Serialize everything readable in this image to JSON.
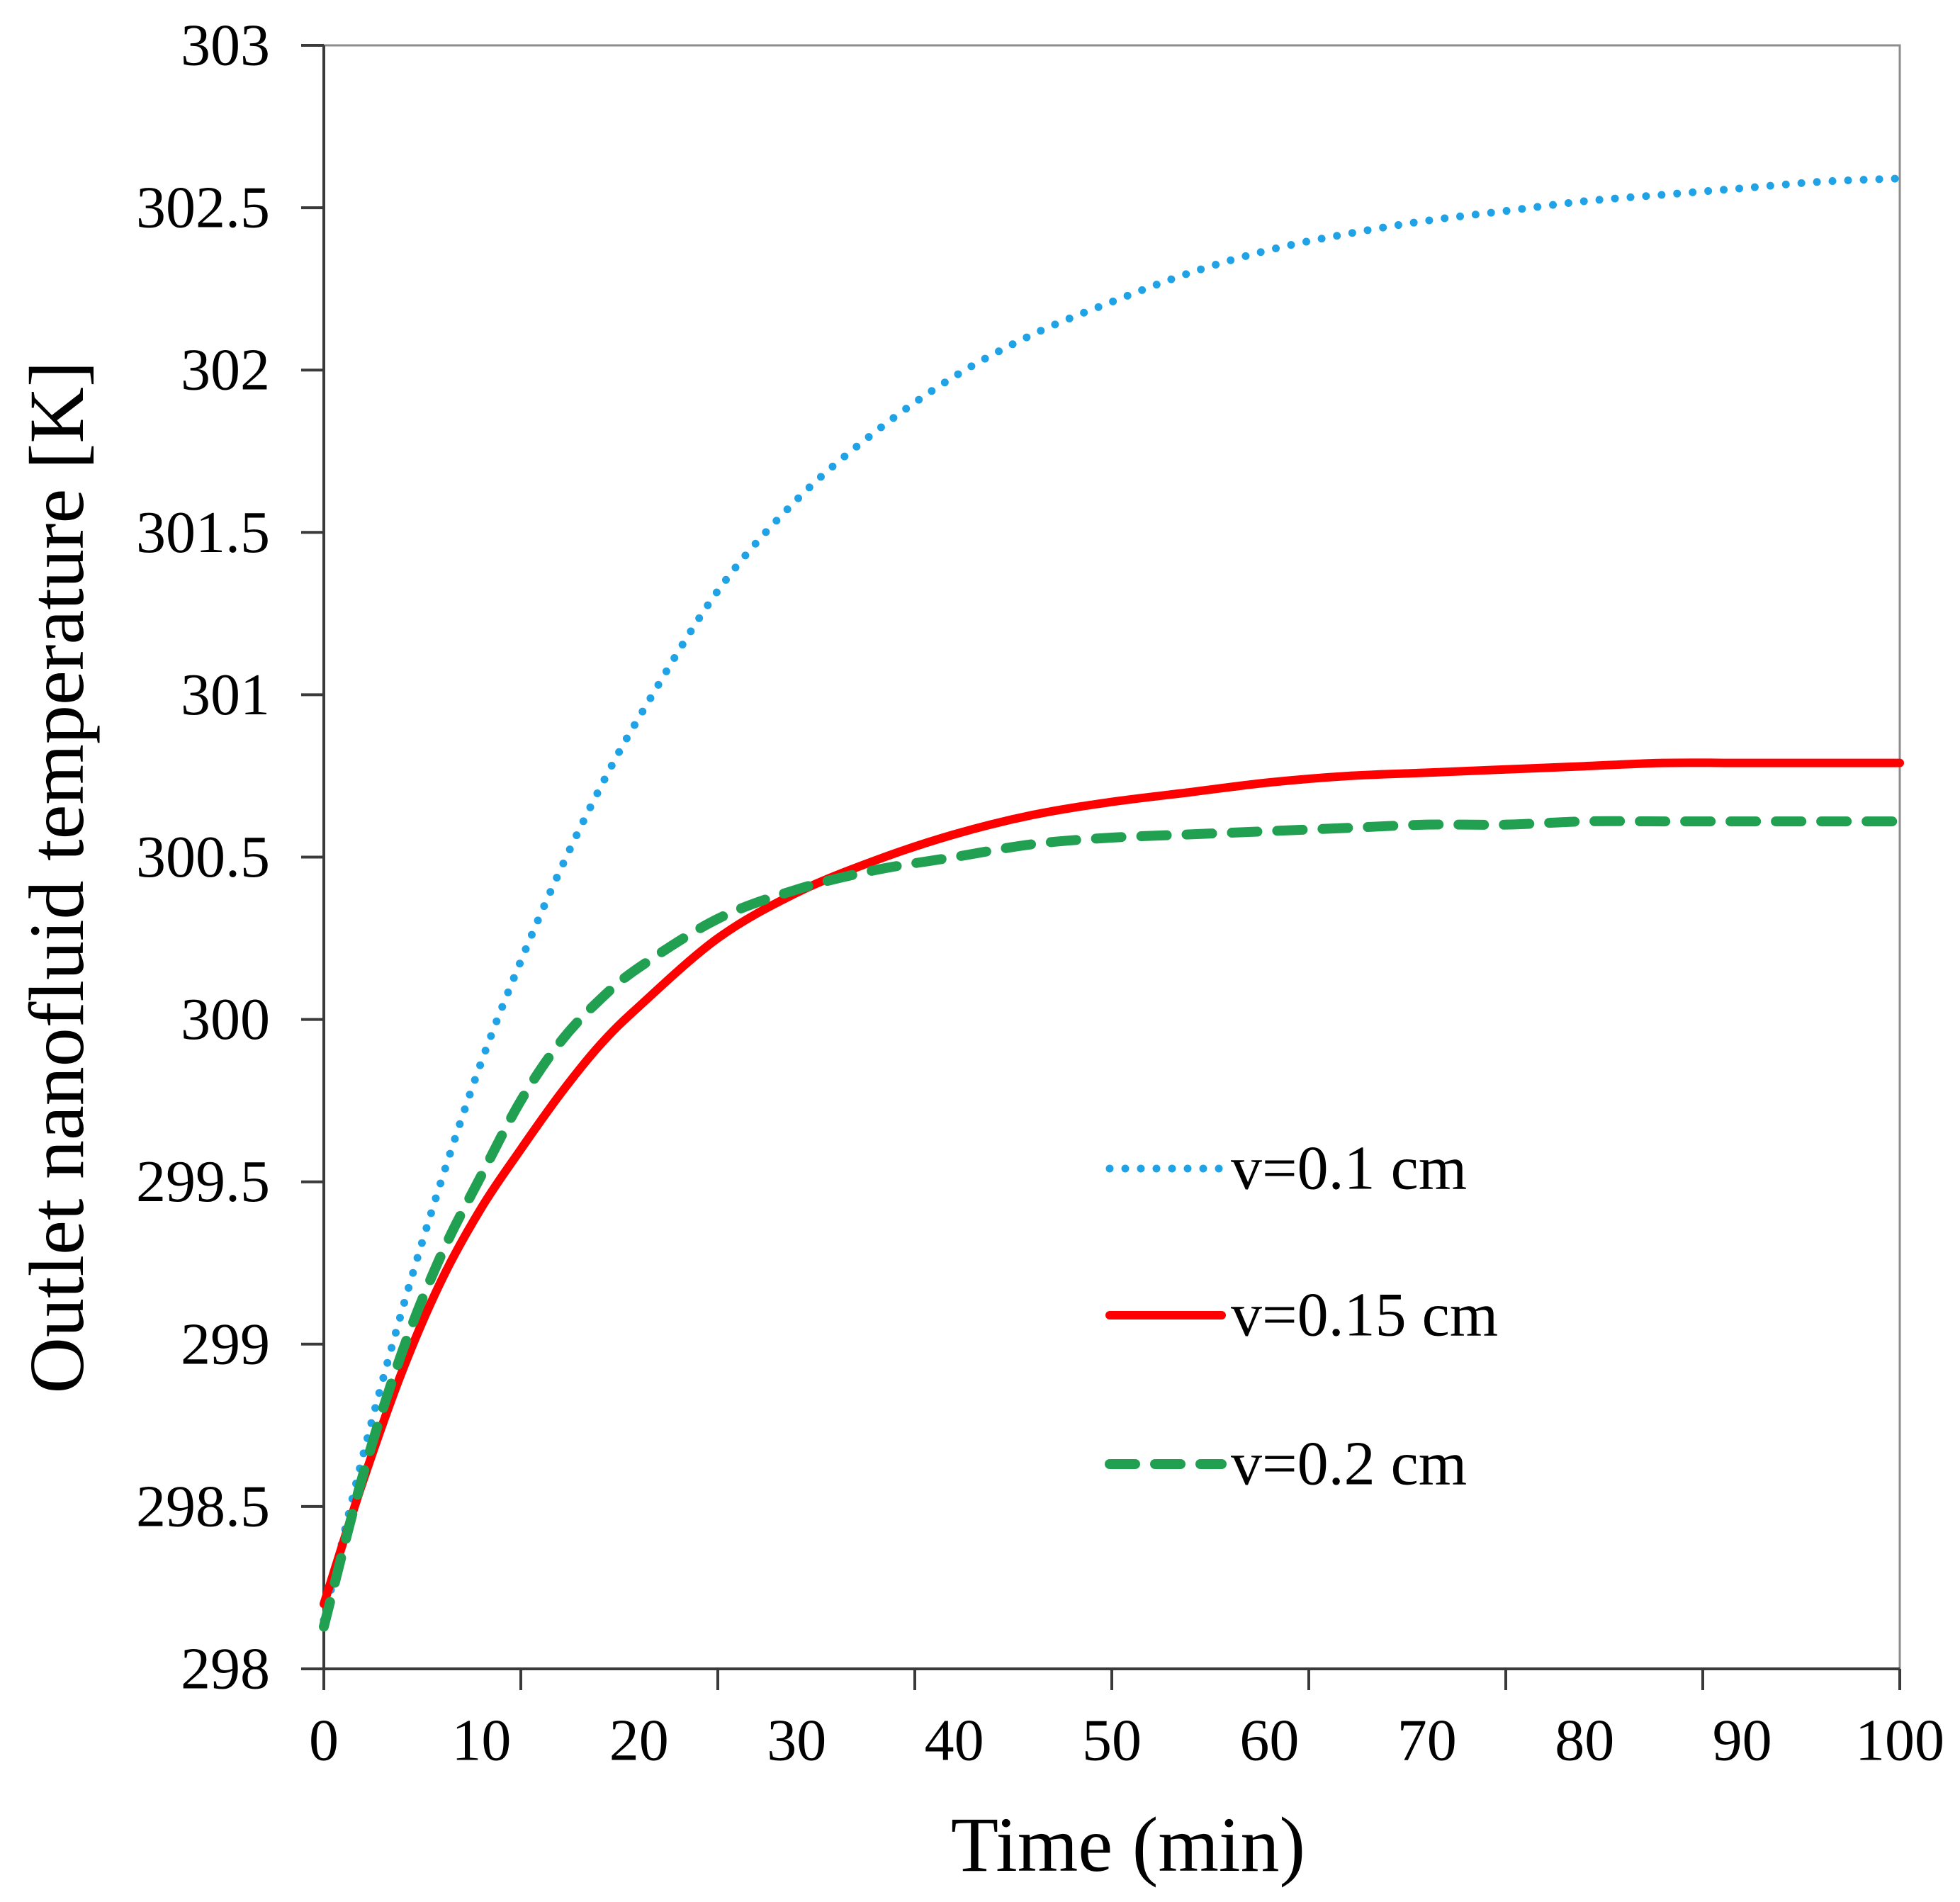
{
  "chart_data": {
    "type": "line",
    "title": "",
    "xlabel": "Time (min)",
    "ylabel": "Outlet nanofluid temperature [K]",
    "xlim": [
      0,
      100
    ],
    "ylim": [
      298,
      303
    ],
    "xticks": [
      0,
      10,
      20,
      30,
      40,
      50,
      60,
      70,
      80,
      90,
      100
    ],
    "xtick_marks": [
      0,
      12.5,
      25,
      37.5,
      50,
      62.5,
      75,
      87.5,
      100
    ],
    "yticks": [
      298,
      298.5,
      299,
      299.5,
      300,
      300.5,
      301,
      301.5,
      302,
      302.5,
      303
    ],
    "grid": false,
    "legend_position": "center-right",
    "series": [
      {
        "name": "v=0.1 cm",
        "color": "#1fa3e6",
        "style": "dotted",
        "x": [
          0,
          2.5,
          5,
          7.5,
          10,
          12.5,
          15,
          17.5,
          20,
          25,
          30,
          35,
          40,
          45,
          50,
          55,
          60,
          65,
          70,
          75,
          80,
          85,
          90,
          95,
          100
        ],
        "y": [
          298.15,
          298.66,
          299.11,
          299.51,
          299.87,
          300.18,
          300.46,
          300.71,
          300.93,
          301.32,
          301.6,
          301.81,
          301.98,
          302.11,
          302.21,
          302.3,
          302.37,
          302.42,
          302.46,
          302.49,
          302.52,
          302.54,
          302.56,
          302.58,
          302.59
        ]
      },
      {
        "name": "v=0.15 cm",
        "color": "#ff0000",
        "style": "solid",
        "x": [
          0,
          2.5,
          5,
          7.5,
          10,
          12.5,
          15,
          17.5,
          20,
          25,
          30,
          35,
          40,
          45,
          50,
          55,
          60,
          65,
          70,
          75,
          80,
          85,
          90,
          95,
          100
        ],
        "y": [
          298.2,
          298.58,
          298.92,
          299.2,
          299.42,
          299.6,
          299.77,
          299.92,
          300.04,
          300.25,
          300.39,
          300.49,
          300.57,
          300.63,
          300.67,
          300.7,
          300.73,
          300.75,
          300.76,
          300.77,
          300.78,
          300.79,
          300.79,
          300.79,
          300.79
        ]
      },
      {
        "name": "v=0.2 cm",
        "color": "#22a052",
        "style": "dashed",
        "x": [
          0,
          2.5,
          5,
          7.5,
          10,
          12.5,
          15,
          17.5,
          20,
          25,
          30,
          35,
          40,
          45,
          50,
          55,
          60,
          65,
          70,
          75,
          80,
          85,
          90,
          95,
          100
        ],
        "y": [
          298.13,
          298.6,
          298.98,
          299.28,
          299.52,
          299.75,
          299.93,
          300.06,
          300.16,
          300.31,
          300.4,
          300.46,
          300.5,
          300.54,
          300.56,
          300.57,
          300.58,
          300.59,
          300.6,
          300.6,
          300.61,
          300.61,
          300.61,
          300.61,
          300.61
        ]
      }
    ]
  }
}
